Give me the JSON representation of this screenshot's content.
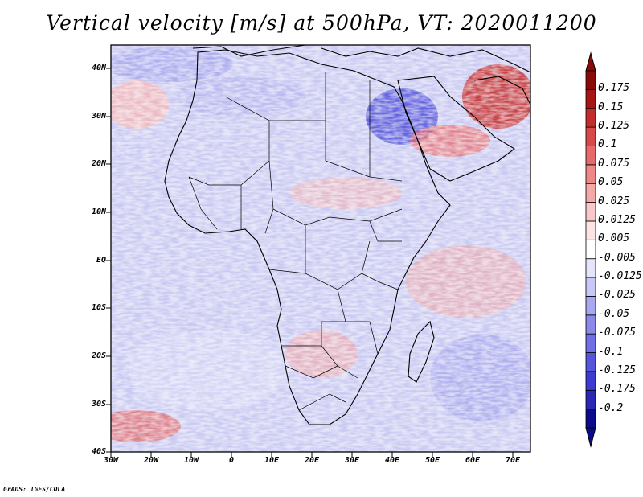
{
  "title": "Vertical velocity [m/s] at 500hPa, VT: 2020011200",
  "credit": "GrADS: IGES/COLA",
  "colors": {
    "strong_down": "#0a0a8a",
    "mid_down": "#6a6ae0",
    "light_down": "#c8c8f2",
    "neutral": "#ffffff",
    "light_up": "#f6c0c0",
    "mid_up": "#e86a6a",
    "strong_up": "#b41818",
    "coast": "#000000"
  },
  "map": {
    "lon_ticks": [
      "30W",
      "20W",
      "10W",
      "0",
      "10E",
      "20E",
      "30E",
      "40E",
      "50E",
      "60E",
      "70E"
    ],
    "lat_ticks": [
      "40N",
      "30N",
      "20N",
      "10N",
      "EQ",
      "10S",
      "20S",
      "30S",
      "40S"
    ]
  },
  "colorbar": {
    "labels": [
      "0.175",
      "0.15",
      "0.125",
      "0.1",
      "0.075",
      "0.05",
      "0.025",
      "0.0125",
      "0.005",
      "-0.005",
      "-0.0125",
      "-0.025",
      "-0.05",
      "-0.075",
      "-0.1",
      "-0.125",
      "-0.175",
      "-0.2"
    ],
    "swatches": [
      "#0a0a8a",
      "#2828b4",
      "#3c3cd2",
      "#5656dc",
      "#7070e4",
      "#8a8aea",
      "#a8a8f0",
      "#c8c8f6",
      "#e4e4fa",
      "#ffffff",
      "#fce4e4",
      "#f8c8c8",
      "#f4a8a8",
      "#ee8888",
      "#e66a6a",
      "#d84848",
      "#c42c2c",
      "#a81414",
      "#8a0a0a"
    ]
  }
}
